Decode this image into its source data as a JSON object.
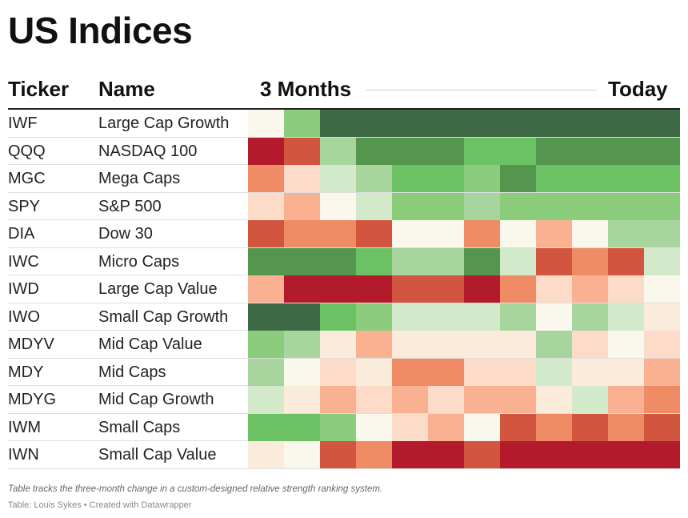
{
  "title": "US Indices",
  "columns": {
    "ticker": "Ticker",
    "name": "Name",
    "start": "3 Months",
    "end": "Today"
  },
  "footer": {
    "note": "Table tracks the three-month change in a custom-designed relative strength ranking system.",
    "source": "Table: Louis Sykes • Created with Datawrapper"
  },
  "palette": {
    "-4": "#b31b2c",
    "-3": "#d25540",
    "-2": "#ef8c66",
    "-1": "#f9b192",
    "-0.5": "#fcdcc9",
    "-0.2": "#fbebdb",
    "0": "#faf7ec",
    "0.5": "#d2eac9",
    "1": "#a8d59e",
    "2": "#8ccc7d",
    "3": "#6bc164",
    "4": "#55964f",
    "5": "#3d6a45"
  },
  "chart_data": {
    "type": "heatmap",
    "title": "US Indices",
    "xlabel_start": "3 Months",
    "xlabel_end": "Today",
    "periods": 12,
    "rows": [
      {
        "ticker": "IWF",
        "name": "Large Cap Growth",
        "values": [
          0,
          2,
          5,
          5,
          5,
          5,
          5,
          5,
          5,
          5,
          5,
          5
        ]
      },
      {
        "ticker": "QQQ",
        "name": "NASDAQ 100",
        "values": [
          -4,
          -3,
          1,
          4,
          4,
          4,
          3,
          3,
          4,
          4,
          4,
          4
        ]
      },
      {
        "ticker": "MGC",
        "name": "Mega Caps",
        "values": [
          -2,
          -0.5,
          0.5,
          1,
          3,
          3,
          2,
          4,
          3,
          3,
          3,
          3
        ]
      },
      {
        "ticker": "SPY",
        "name": "S&P 500",
        "values": [
          -0.5,
          -1,
          0,
          0.5,
          2,
          2,
          1,
          2,
          2,
          2,
          2,
          2
        ]
      },
      {
        "ticker": "DIA",
        "name": "Dow 30",
        "values": [
          -3,
          -2,
          -2,
          -3,
          0,
          0,
          -2,
          0,
          -1,
          0,
          1,
          1
        ]
      },
      {
        "ticker": "IWC",
        "name": "Micro Caps",
        "values": [
          4,
          4,
          4,
          3,
          1,
          1,
          4,
          0.5,
          -3,
          -2,
          -3,
          0.5
        ]
      },
      {
        "ticker": "IWD",
        "name": "Large Cap Value",
        "values": [
          -1,
          -4,
          -4,
          -4,
          -3,
          -3,
          -4,
          -2,
          -0.5,
          -1,
          -0.5,
          0
        ]
      },
      {
        "ticker": "IWO",
        "name": "Small Cap Growth",
        "values": [
          5,
          5,
          3,
          2,
          0.5,
          0.5,
          0.5,
          1,
          0,
          1,
          0.5,
          -0.2
        ]
      },
      {
        "ticker": "MDYV",
        "name": "Mid Cap Value",
        "values": [
          2,
          1,
          -0.2,
          -1,
          -0.2,
          -0.2,
          -0.2,
          -0.2,
          1,
          -0.5,
          0,
          -0.5
        ]
      },
      {
        "ticker": "MDY",
        "name": "Mid Caps",
        "values": [
          1,
          0,
          -0.5,
          -0.2,
          -2,
          -2,
          -0.5,
          -0.5,
          0.5,
          -0.2,
          -0.2,
          -1
        ]
      },
      {
        "ticker": "MDYG",
        "name": "Mid Cap Growth",
        "values": [
          0.5,
          -0.2,
          -1,
          -0.5,
          -1,
          -0.5,
          -1,
          -1,
          -0.2,
          0.5,
          -1,
          -2
        ]
      },
      {
        "ticker": "IWM",
        "name": "Small Caps",
        "values": [
          3,
          3,
          2,
          0,
          -0.5,
          -1,
          0,
          -3,
          -2,
          -3,
          -2,
          -3
        ]
      },
      {
        "ticker": "IWN",
        "name": "Small Cap Value",
        "values": [
          -0.2,
          0,
          -3,
          -2,
          -4,
          -4,
          -3,
          -4,
          -4,
          -4,
          -4,
          -4
        ]
      }
    ]
  }
}
